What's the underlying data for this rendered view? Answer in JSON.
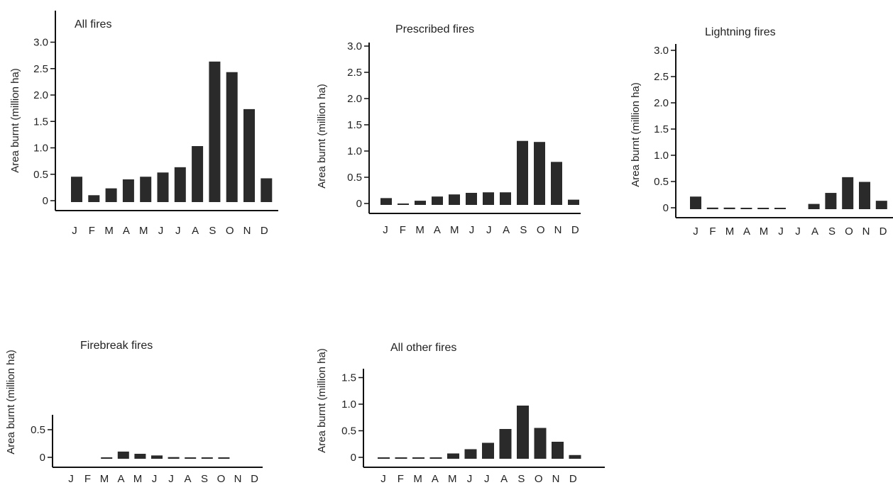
{
  "chart_data": [
    {
      "type": "bar",
      "title": "All fires",
      "ylabel": "Area burnt (million ha)",
      "yticks": [
        "0",
        "0.5",
        "1.0",
        "1.5",
        "2.0",
        "2.5",
        "3.0"
      ],
      "categories": [
        "J",
        "F",
        "M",
        "A",
        "M",
        "J",
        "J",
        "A",
        "S",
        "O",
        "N",
        "D"
      ],
      "values": [
        0.48,
        0.13,
        0.26,
        0.43,
        0.48,
        0.56,
        0.66,
        1.06,
        2.66,
        2.46,
        1.76,
        0.45
      ],
      "ylim": [
        0,
        3.0
      ]
    },
    {
      "type": "bar",
      "title": "Prescribed fires",
      "ylabel": "Area burnt (million ha)",
      "yticks": [
        "0",
        "0.5",
        "1.0",
        "1.5",
        "2.0",
        "2.5",
        "3.0"
      ],
      "categories": [
        "J",
        "F",
        "M",
        "A",
        "M",
        "J",
        "J",
        "A",
        "S",
        "O",
        "N",
        "D"
      ],
      "values": [
        0.13,
        0.02,
        0.08,
        0.16,
        0.2,
        0.23,
        0.24,
        0.24,
        1.22,
        1.2,
        0.82,
        0.1
      ],
      "ylim": [
        0,
        3.0
      ]
    },
    {
      "type": "bar",
      "title": "Lightning fires",
      "ylabel": "Area burnt (million ha)",
      "yticks": [
        "0",
        "0.5",
        "1.0",
        "1.5",
        "2.0",
        "2.5",
        "3.0"
      ],
      "categories": [
        "J",
        "F",
        "M",
        "A",
        "M",
        "J",
        "J",
        "A",
        "S",
        "O",
        "N",
        "D"
      ],
      "values": [
        0.24,
        0.03,
        0.03,
        0.02,
        0.02,
        0.01,
        0.0,
        0.1,
        0.31,
        0.61,
        0.52,
        0.16
      ],
      "ylim": [
        0,
        3.0
      ]
    },
    {
      "type": "bar",
      "title": "Firebreak fires",
      "ylabel": "Area burnt (million ha)",
      "yticks": [
        "0",
        "0.5"
      ],
      "categories": [
        "J",
        "F",
        "M",
        "A",
        "M",
        "J",
        "J",
        "A",
        "S",
        "O",
        "N",
        "D"
      ],
      "values": [
        0.0,
        0.0,
        0.01,
        0.13,
        0.09,
        0.06,
        0.03,
        0.02,
        0.01,
        0.01,
        0.0,
        0.0
      ],
      "ylim": [
        0,
        0.8
      ]
    },
    {
      "type": "bar",
      "title": "All other fires",
      "ylabel": "Area burnt (million ha)",
      "yticks": [
        "0",
        "0.5",
        "1.0",
        "1.5"
      ],
      "categories": [
        "J",
        "F",
        "M",
        "A",
        "M",
        "J",
        "J",
        "A",
        "S",
        "O",
        "N",
        "D"
      ],
      "values": [
        0.02,
        0.02,
        0.01,
        0.01,
        0.1,
        0.18,
        0.3,
        0.56,
        1.0,
        0.58,
        0.32,
        0.07
      ],
      "ylim": [
        0,
        1.6
      ]
    }
  ]
}
